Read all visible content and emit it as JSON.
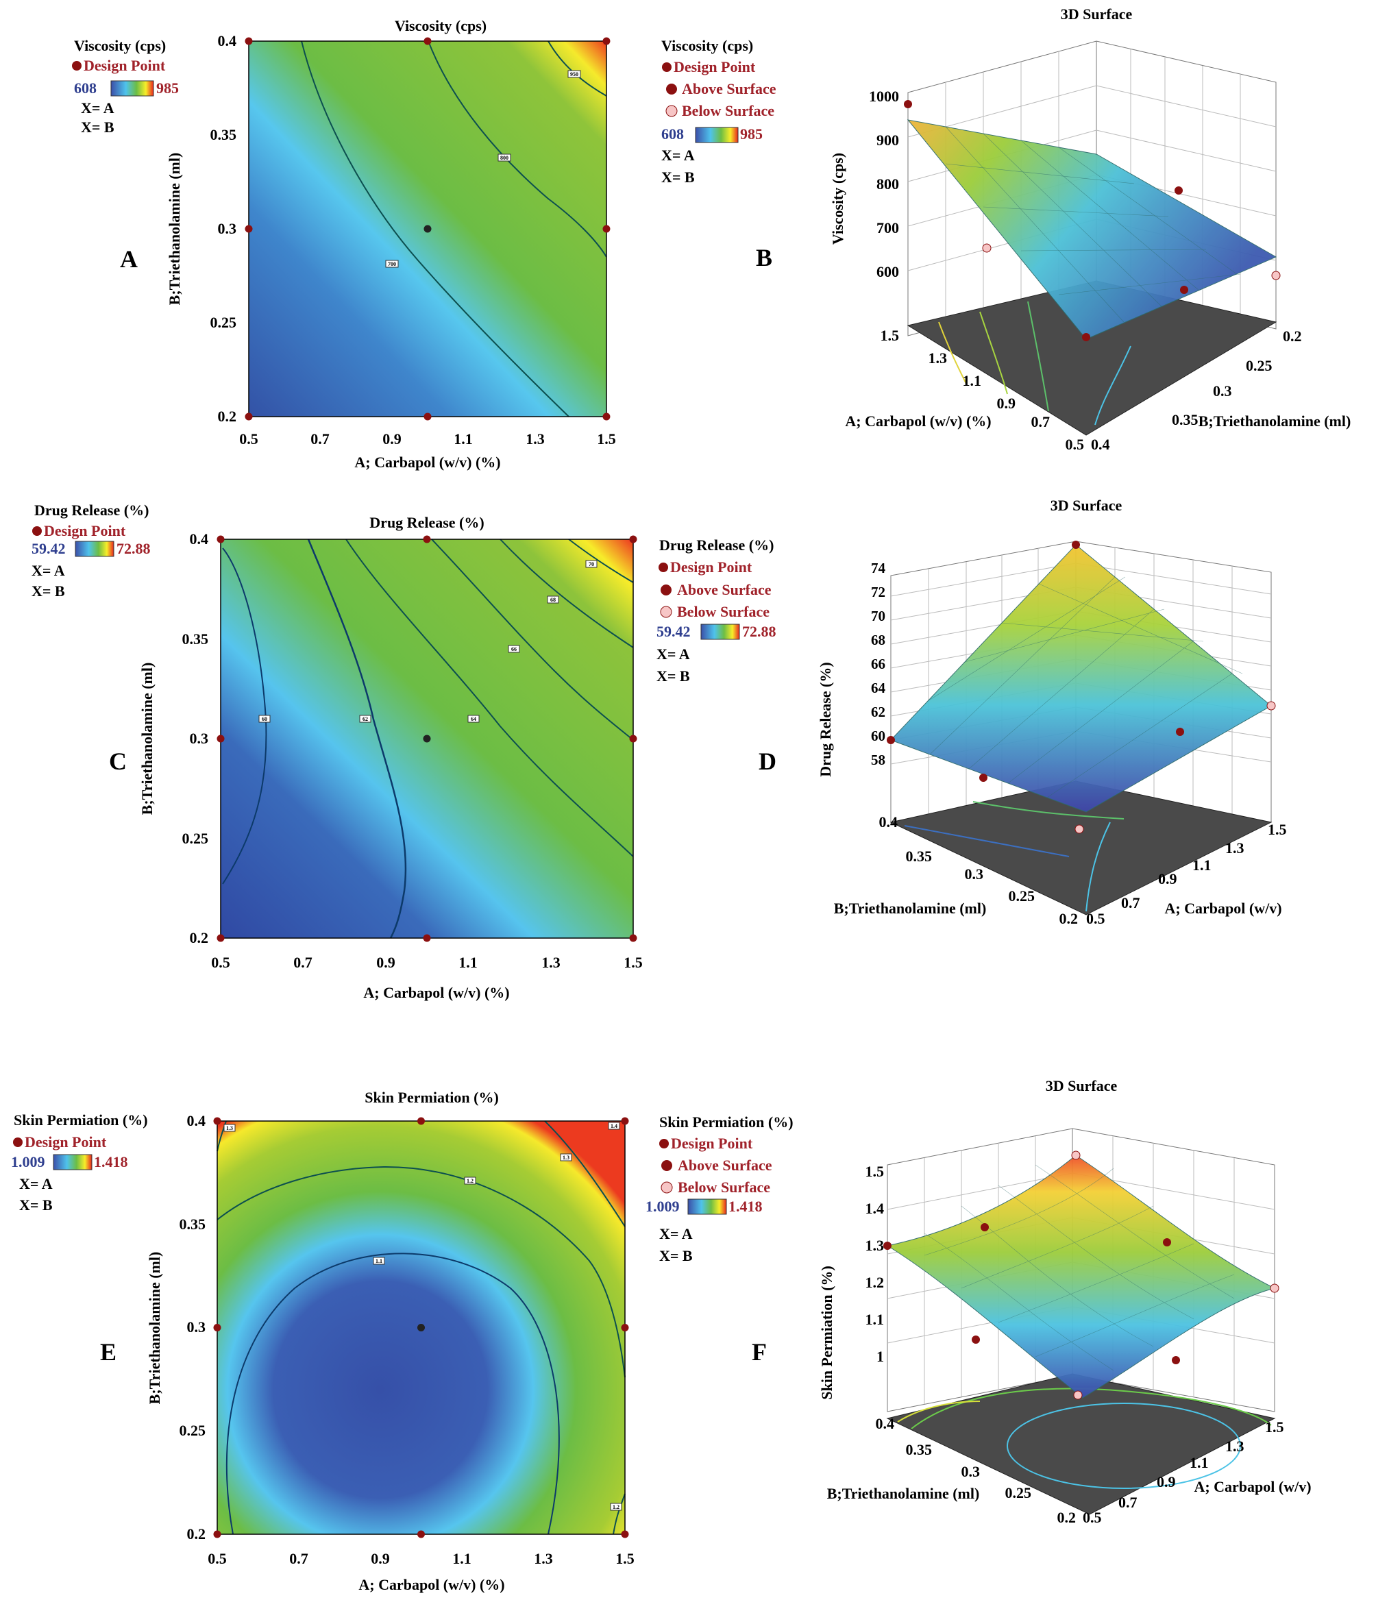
{
  "colors": {
    "low": "#3b4fa8",
    "mid_low": "#4fc3ec",
    "mid": "#6cbd45",
    "high": "#f7ee2a",
    "top": "#e8251f",
    "design_point": "#8b1010",
    "below_point": "#f7c6c6",
    "legend_text": "#a0222a",
    "legend_low_text": "#2f3f8f",
    "floor": "#4a4a4a"
  },
  "legend_common": {
    "design_point": "Design Point",
    "above_surface": "Above Surface",
    "below_surface": "Below Surface",
    "x1": "X= A",
    "x2": "X= B"
  },
  "chart_data": [
    {
      "id": "A",
      "type": "contour",
      "panel_label": "A",
      "title": "Viscosity (cps)",
      "xlabel": "A; Carbapol (w/v) (%)",
      "ylabel": "B;Triethanolamine (ml)",
      "xticks": [
        "0.5",
        "0.7",
        "0.9",
        "1.1",
        "1.3",
        "1.5"
      ],
      "yticks": [
        "0.2",
        "0.25",
        "0.3",
        "0.35",
        "0.4"
      ],
      "xlim": [
        0.5,
        1.5
      ],
      "ylim": [
        0.2,
        0.4
      ],
      "legend_title": "Viscosity (cps)",
      "range_low": "608",
      "range_high": "985",
      "contours": [
        {
          "level": "700"
        },
        {
          "level": "800"
        },
        {
          "level": "950"
        }
      ],
      "design_points": [
        [
          0.5,
          0.2
        ],
        [
          1.0,
          0.2
        ],
        [
          1.5,
          0.2
        ],
        [
          0.5,
          0.3
        ],
        [
          1.0,
          0.3
        ],
        [
          1.5,
          0.3
        ],
        [
          0.5,
          0.4
        ],
        [
          1.0,
          0.4
        ],
        [
          1.5,
          0.4
        ]
      ]
    },
    {
      "id": "B",
      "type": "surface3d",
      "panel_label": "B",
      "title": "3D Surface",
      "zlabel": "Viscosity (cps)",
      "xlabel": "A; Carbapol (w/v) (%)",
      "ylabel": "B;Triethanolamine (ml)",
      "zticks": [
        "600",
        "700",
        "800",
        "900",
        "1000"
      ],
      "xticks": [
        "0.5",
        "0.7",
        "0.9",
        "1.1",
        "1.3",
        "1.5"
      ],
      "yticks": [
        "0.2",
        "0.25",
        "0.3",
        "0.35",
        "0.4"
      ],
      "legend_title": "Viscosity (cps)",
      "range_low": "608",
      "range_high": "985"
    },
    {
      "id": "C",
      "type": "contour",
      "panel_label": "C",
      "title": "Drug Release (%)",
      "xlabel": "A; Carbapol (w/v) (%)",
      "ylabel": "B;Triethanolamine (ml)",
      "xticks": [
        "0.5",
        "0.7",
        "0.9",
        "1.1",
        "1.3",
        "1.5"
      ],
      "yticks": [
        "0.2",
        "0.25",
        "0.3",
        "0.35",
        "0.4"
      ],
      "xlim": [
        0.5,
        1.5
      ],
      "ylim": [
        0.2,
        0.4
      ],
      "legend_title": "Drug Release (%)",
      "range_low": "59.42",
      "range_high": "72.88",
      "contours": [
        {
          "level": "60"
        },
        {
          "level": "62"
        },
        {
          "level": "64"
        },
        {
          "level": "66"
        },
        {
          "level": "68"
        },
        {
          "level": "70"
        }
      ],
      "design_points": [
        [
          0.5,
          0.2
        ],
        [
          1.0,
          0.2
        ],
        [
          1.5,
          0.2
        ],
        [
          0.5,
          0.3
        ],
        [
          1.0,
          0.3
        ],
        [
          1.5,
          0.3
        ],
        [
          0.5,
          0.4
        ],
        [
          1.0,
          0.4
        ],
        [
          1.5,
          0.4
        ]
      ]
    },
    {
      "id": "D",
      "type": "surface3d",
      "panel_label": "D",
      "title": "3D Surface",
      "zlabel": "Drug Release (%)",
      "xlabel": "A; Carbapol (w/v)",
      "ylabel": "B;Triethanolamine (ml)",
      "zticks": [
        "58",
        "60",
        "62",
        "64",
        "66",
        "68",
        "70",
        "72",
        "74"
      ],
      "xticks": [
        "0.5",
        "0.7",
        "0.9",
        "1.1",
        "1.3",
        "1.5"
      ],
      "yticks": [
        "0.2",
        "0.25",
        "0.3",
        "0.35",
        "0.4"
      ],
      "legend_title": "Drug Release (%)",
      "range_low": "59.42",
      "range_high": "72.88"
    },
    {
      "id": "E",
      "type": "contour",
      "panel_label": "E",
      "title": "Skin Permiation (%)",
      "xlabel": "A; Carbapol (w/v) (%)",
      "ylabel": "B;Triethanolamine (ml)",
      "xticks": [
        "0.5",
        "0.7",
        "0.9",
        "1.1",
        "1.3",
        "1.5"
      ],
      "yticks": [
        "0.2",
        "0.25",
        "0.3",
        "0.35",
        "0.4"
      ],
      "xlim": [
        0.5,
        1.5
      ],
      "ylim": [
        0.2,
        0.4
      ],
      "legend_title": "Skin Permiation (%)",
      "range_low": "1.009",
      "range_high": "1.418",
      "contours": [
        {
          "level": "1.1"
        },
        {
          "level": "1.2"
        },
        {
          "level": "1.3"
        },
        {
          "level": "1.4"
        }
      ],
      "design_points": [
        [
          0.5,
          0.2
        ],
        [
          1.0,
          0.2
        ],
        [
          1.5,
          0.2
        ],
        [
          0.5,
          0.3
        ],
        [
          1.0,
          0.3
        ],
        [
          1.5,
          0.3
        ],
        [
          0.5,
          0.4
        ],
        [
          1.0,
          0.4
        ],
        [
          1.5,
          0.4
        ]
      ]
    },
    {
      "id": "F",
      "type": "surface3d",
      "panel_label": "F",
      "title": "3D Surface",
      "zlabel": "Skin Permiation (%)",
      "xlabel": "A; Carbapol (w/v)",
      "ylabel": "B;Triethanolamine (ml)",
      "zticks": [
        "1",
        "1.1",
        "1.2",
        "1.3",
        "1.4",
        "1.5"
      ],
      "xticks": [
        "0.5",
        "0.7",
        "0.9",
        "1.1",
        "1.3",
        "1.5"
      ],
      "yticks": [
        "0.2",
        "0.25",
        "0.3",
        "0.35",
        "0.4"
      ],
      "legend_title": "Skin Permiation (%)",
      "range_low": "1.009",
      "range_high": "1.418"
    }
  ]
}
